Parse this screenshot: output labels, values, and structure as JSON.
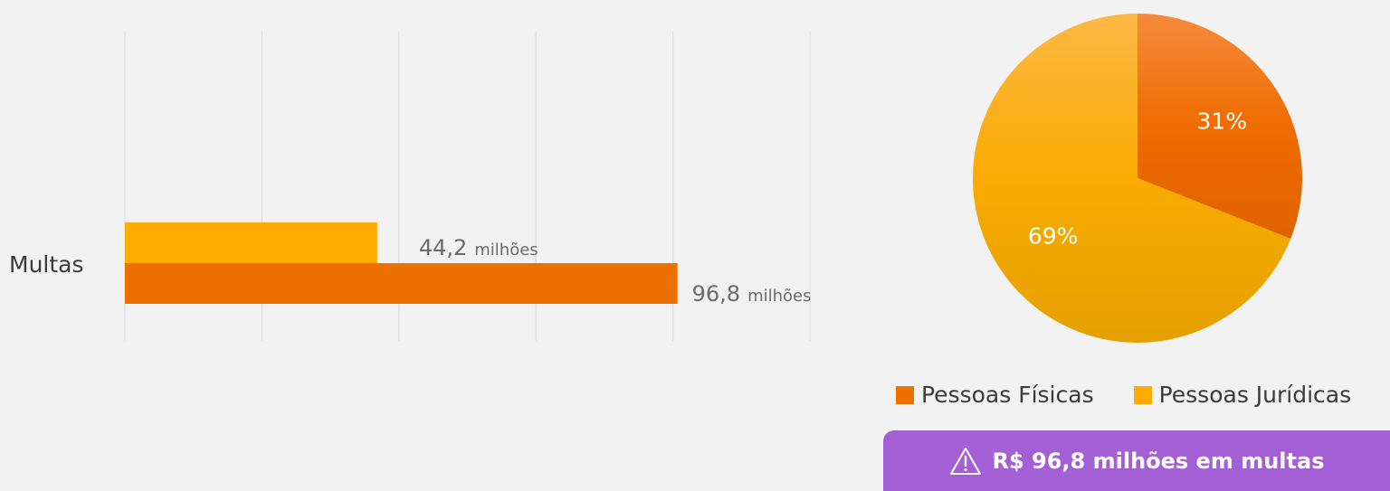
{
  "chart_data": [
    {
      "type": "bar",
      "orientation": "horizontal",
      "categories": [
        "Multas"
      ],
      "series": [
        {
          "name": "Pessoas Jurídicas",
          "values": [
            44.2
          ],
          "label_value": "44,2",
          "label_unit": "milhões",
          "color": "#fcab00"
        },
        {
          "name": "Pessoas Físicas",
          "values": [
            96.8
          ],
          "label_value": "96,8",
          "label_unit": "milhões",
          "color": "#ec7000"
        }
      ],
      "xlim": [
        0,
        120
      ],
      "grid": true,
      "ylabel": "",
      "xlabel": ""
    },
    {
      "type": "pie",
      "slices": [
        {
          "label": "Pessoas Físicas",
          "value": 31,
          "text": "31%",
          "color": "#ef6c00"
        },
        {
          "label": "Pessoas Jurídicas",
          "value": 69,
          "text": "69%",
          "color": "#f9ab00"
        }
      ]
    }
  ],
  "legend": {
    "items": [
      {
        "label": "Pessoas Físicas",
        "color": "#ec7000"
      },
      {
        "label": "Pessoas Jurídicas",
        "color": "#fcab00"
      }
    ],
    "placement": "bottom"
  },
  "alert": {
    "icon": "warning-icon",
    "text": "R$ 96,8 milhões em multas",
    "color": "#a35fd4"
  }
}
